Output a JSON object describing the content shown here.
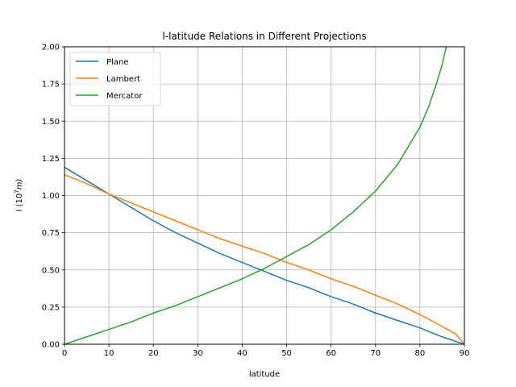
{
  "chart_data": {
    "type": "line",
    "title": "l-latitude Relations in Different Projections",
    "xlabel": "latitude",
    "ylabel": "l (10^7 m)",
    "ylabel_base": "l (10",
    "ylabel_exp": "7",
    "ylabel_unit": "m)",
    "xlim": [
      0,
      90
    ],
    "ylim": [
      0,
      2.0
    ],
    "xticks": [
      "0",
      "10",
      "20",
      "30",
      "40",
      "50",
      "60",
      "70",
      "80",
      "90"
    ],
    "yticks": [
      "0.00",
      "0.25",
      "0.50",
      "0.75",
      "1.00",
      "1.25",
      "1.50",
      "1.75",
      "2.00"
    ],
    "grid": true,
    "legend_position": "top-left",
    "series": [
      {
        "name": "Plane",
        "color": "#1f77b4",
        "x": [
          0,
          5,
          10,
          15,
          20,
          25,
          30,
          35,
          40,
          45,
          50,
          55,
          60,
          65,
          70,
          75,
          80,
          85,
          90
        ],
        "y": [
          1.19,
          1.1,
          1.01,
          0.92,
          0.83,
          0.75,
          0.68,
          0.61,
          0.55,
          0.49,
          0.43,
          0.38,
          0.32,
          0.27,
          0.21,
          0.16,
          0.11,
          0.05,
          0.0
        ]
      },
      {
        "name": "Lambert",
        "color": "#ff7f0e",
        "x": [
          0,
          5,
          10,
          15,
          20,
          25,
          30,
          35,
          40,
          45,
          50,
          55,
          60,
          65,
          70,
          75,
          80,
          85,
          88,
          90
        ],
        "y": [
          1.14,
          1.08,
          1.01,
          0.95,
          0.89,
          0.83,
          0.77,
          0.71,
          0.66,
          0.61,
          0.55,
          0.5,
          0.44,
          0.39,
          0.33,
          0.27,
          0.2,
          0.12,
          0.07,
          0.0
        ]
      },
      {
        "name": "Mercator",
        "color": "#2ca02c",
        "x": [
          0,
          5,
          10,
          15,
          20,
          25,
          30,
          35,
          40,
          45,
          50,
          55,
          60,
          65,
          70,
          75,
          80,
          82,
          84,
          85,
          86
        ],
        "y": [
          0.0,
          0.05,
          0.1,
          0.15,
          0.21,
          0.26,
          0.32,
          0.38,
          0.44,
          0.51,
          0.59,
          0.67,
          0.77,
          0.89,
          1.03,
          1.21,
          1.46,
          1.6,
          1.78,
          1.88,
          2.01
        ]
      }
    ]
  }
}
